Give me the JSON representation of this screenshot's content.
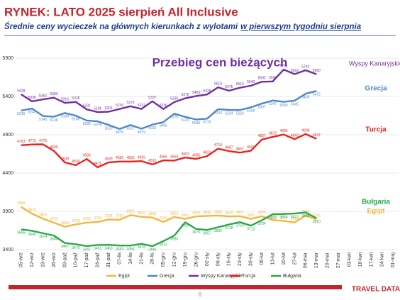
{
  "header": {
    "title": "RYNEK: LATO 2025 sierpień All Inclusive",
    "subtitle": "Średnie ceny wycieczek na głównych kierunkach z wylotami",
    "subtitle_underlined": "w pierwszym tygodniu sierpnia"
  },
  "page_number": "6",
  "logo": "TRAVEL DATA",
  "chart_data": {
    "type": "line",
    "annotation": "Przebieg cen bieżących",
    "categories": [
      "05-wrz",
      "12-wrz",
      "19-wrz",
      "26-wrz",
      "03-paź",
      "10-paź",
      "17-paź",
      "24-paź",
      "31-paź",
      "07-lis",
      "14-lis",
      "21-lis",
      "28-lis",
      "05-gru",
      "12-gru",
      "19-gru",
      "26-gru",
      "02-sty",
      "09-sty",
      "16-sty",
      "23-sty",
      "30-sty",
      "06-lut",
      "13-lut",
      "20-lut",
      "27-lut",
      "06-mar",
      "13-mar",
      "20-mar",
      "27-mar",
      "03-kwi",
      "10-kwi",
      "17-kwi",
      "24-kwi",
      "01-maj"
    ],
    "series": [
      {
        "name": "Egipt",
        "color": "#f4b63f",
        "values": [
          3958,
          3870,
          3804,
          3753,
          3699,
          3729,
          3753,
          3762,
          3794,
          3790,
          3852,
          3829,
          3819,
          3762,
          3826,
          3802,
          3835,
          3840,
          3845,
          3834,
          3837,
          3802,
          3836,
          3786,
          3776,
          3756,
          3846,
          3796,
          null,
          null,
          null,
          null,
          null,
          null,
          null
        ]
      },
      {
        "name": "Grecja",
        "color": "#4f87c9",
        "values": [
          5216,
          5242,
          5145,
          5136,
          5184,
          5149,
          5086,
          5075,
          5029,
          4975,
          5027,
          4979,
          5032,
          5065,
          5175,
          5133,
          5099,
          5110,
          5234,
          5224,
          5223,
          5258,
          5307,
          5347,
          5330,
          5345,
          5435,
          5472,
          null,
          null,
          null,
          null,
          null,
          null,
          null
        ]
      },
      {
        "name": "Wyspy Kanaryjskie",
        "color": "#7030a0",
        "values": [
          5428,
          5336,
          5362,
          5383,
          5316,
          5328,
          5231,
          5196,
          5201,
          5236,
          5272,
          5237,
          5337,
          5236,
          5326,
          5376,
          5405,
          5426,
          5519,
          5475,
          5514,
          5540,
          5592,
          5596,
          5751,
          5692,
          5742,
          5690,
          null,
          null,
          null,
          null,
          null,
          null,
          null
        ]
      },
      {
        "name": "Turcja",
        "color": "#e8231f",
        "values": [
          4763,
          4773,
          4775,
          4690,
          4539,
          4503,
          4583,
          4475,
          4539,
          4550,
          4550,
          4556,
          4512,
          4566,
          4563,
          4603,
          4585,
          4621,
          4718,
          4687,
          4667,
          4691,
          4837,
          4872,
          4903,
          4843,
          4909,
          4847,
          null,
          null,
          null,
          null,
          null,
          null,
          null
        ]
      },
      {
        "name": "Bułgaria",
        "color": "#2aa84a",
        "values": [
          3665,
          3646,
          3614,
          3584,
          3487,
          3470,
          3447,
          3461,
          3463,
          3454,
          3454,
          3476,
          3446,
          3511,
          3583,
          3757,
          3670,
          3657,
          3692,
          3728,
          3759,
          3713,
          3784,
          3862,
          3866,
          3872,
          3886,
          3810,
          null,
          null,
          null,
          null,
          null,
          null,
          null
        ]
      }
    ],
    "ylim": [
      3400,
      5900
    ],
    "yticks": [
      3400,
      3900,
      4400,
      4900,
      5400,
      5900
    ],
    "grid": true,
    "legend": "bottom"
  }
}
